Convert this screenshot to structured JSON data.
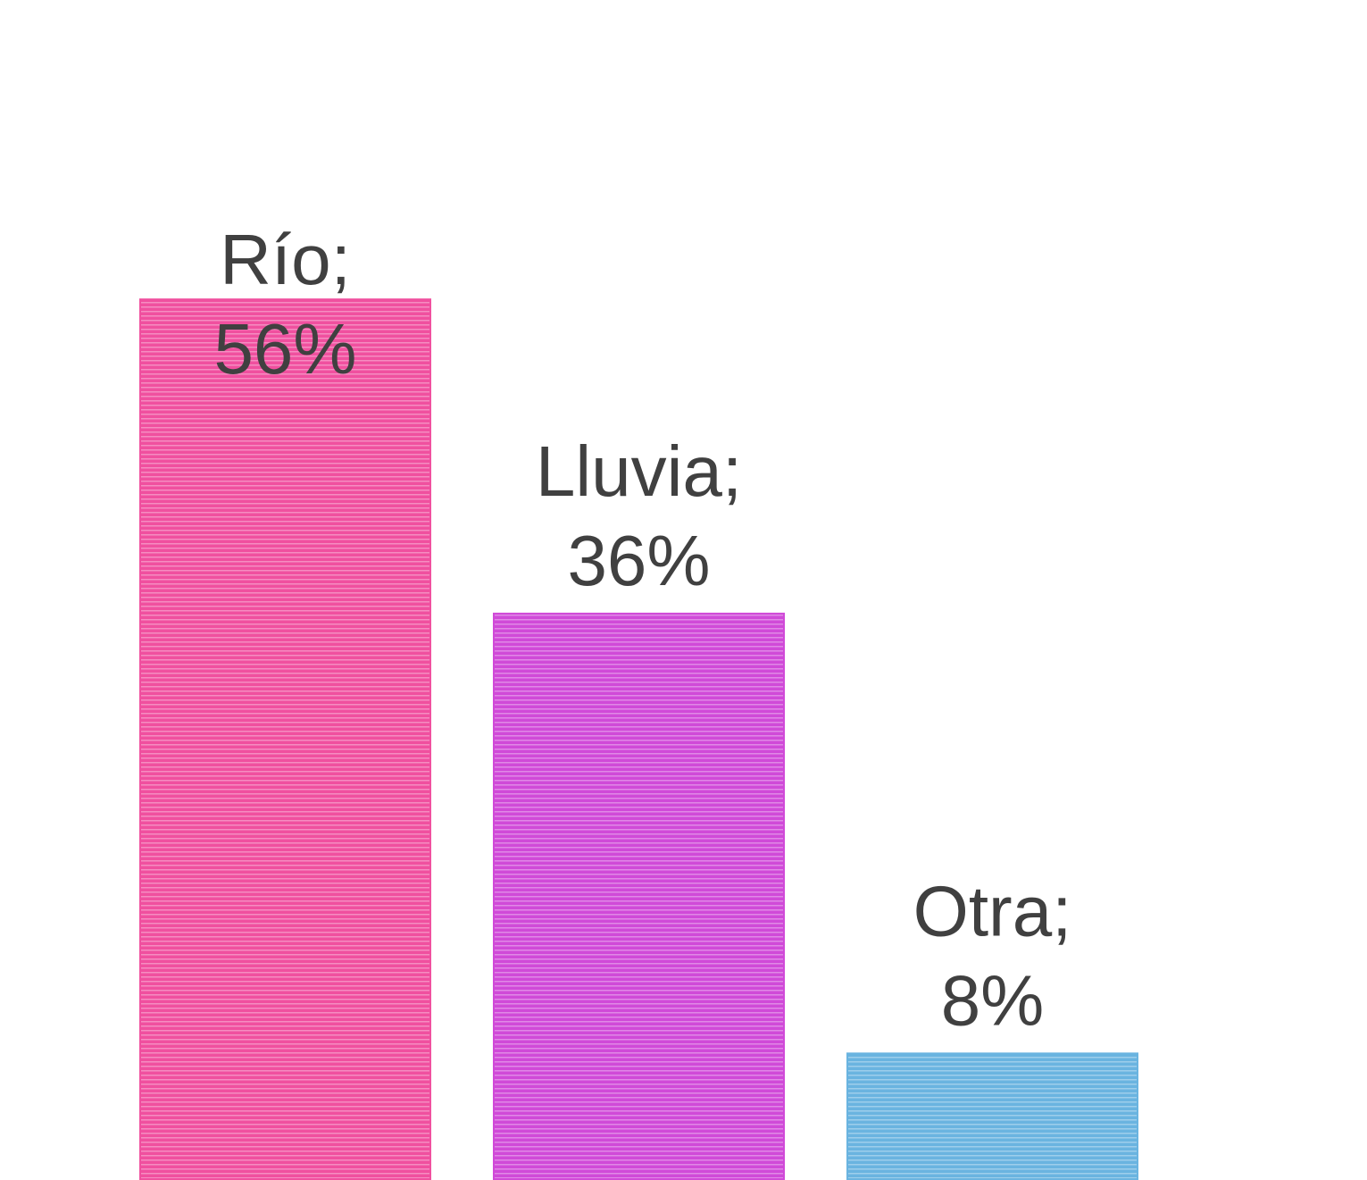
{
  "chart_data": {
    "type": "bar",
    "categories": [
      "Río;",
      "Lluvia;",
      "Otra;"
    ],
    "values": [
      56,
      36,
      8
    ],
    "value_labels": [
      "56%",
      "36%",
      "8%"
    ],
    "colors": [
      "#f0509f",
      "#d04ad8",
      "#6ab4e0"
    ],
    "ylim": [
      0,
      75
    ]
  }
}
